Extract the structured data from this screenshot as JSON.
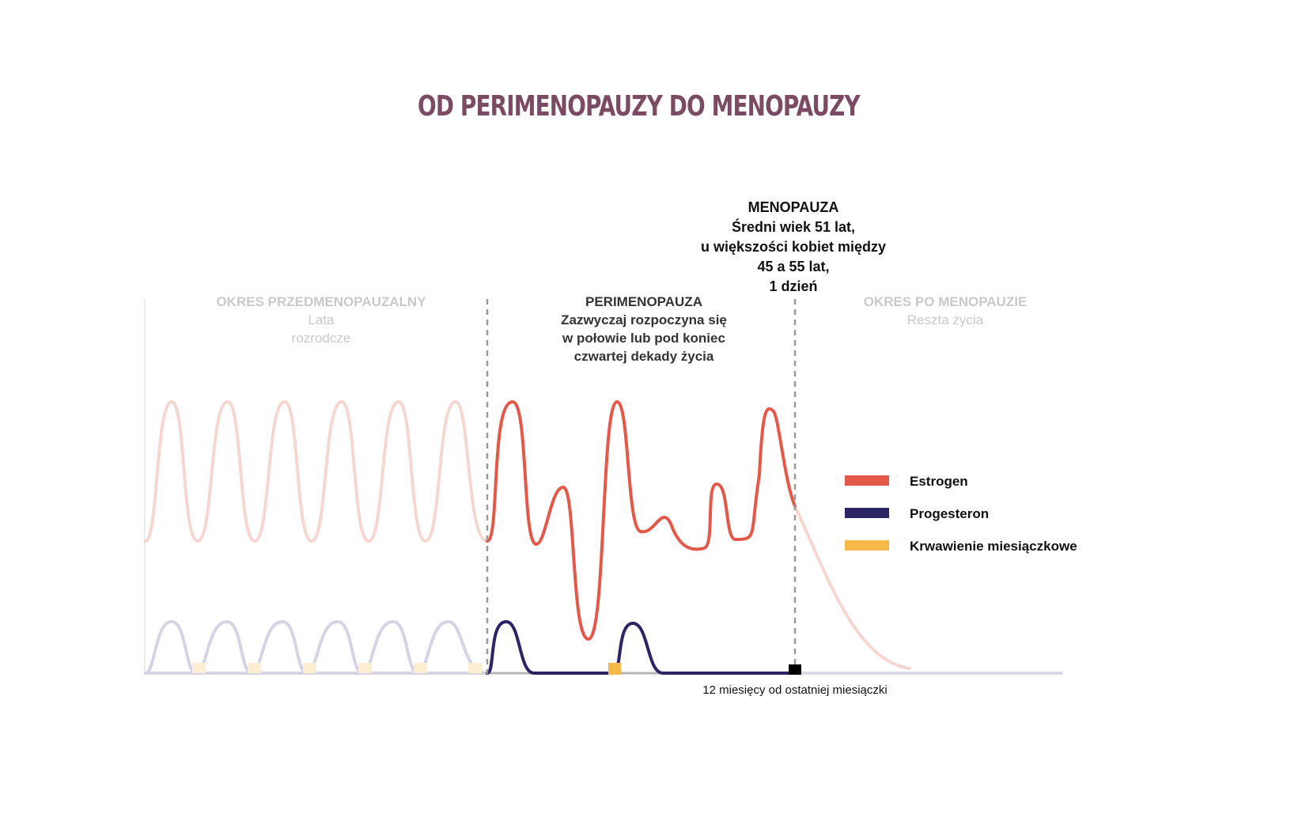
{
  "title": "OD PERIMENOPAUZY DO MENOPAUZY",
  "colors": {
    "title": "#7b4a63",
    "estrogen": "#e4584a",
    "estrogen_faded": "#f6d6d0",
    "progesterone": "#2b2563",
    "progesterone_faded": "#d5d3e4",
    "bleeding": "#f7b84a",
    "bleeding_faded": "#fdeed3",
    "baseline": "#d9d9e6",
    "divider": "#999999",
    "marker": "#000000"
  },
  "phases": {
    "pre": {
      "title": "OKRES PRZEDMENOPAUZALNY",
      "lines": [
        "Lata",
        "rozrodcze"
      ]
    },
    "peri": {
      "title": "PERIMENOPAUZA",
      "lines": [
        "Zazwyczaj rozpoczyna się",
        "w połowie lub pod koniec",
        "czwartej dekady życia"
      ]
    },
    "meno": {
      "title": "MENOPAUZA",
      "lines": [
        "Średni wiek 51 lat,",
        "u większości kobiet między",
        "45 a 55 lat,",
        "1 dzień"
      ]
    },
    "post": {
      "title": "OKRES PO MENOPAUZIE",
      "lines": [
        "Reszta życia"
      ]
    }
  },
  "legend": [
    {
      "label": "Estrogen",
      "color_key": "estrogen"
    },
    {
      "label": "Progesteron",
      "color_key": "progesterone"
    },
    {
      "label": "Krwawienie miesiączkowe",
      "color_key": "bleeding"
    }
  ],
  "axis_note": "12 miesięcy od ostatniej miesiączki"
}
